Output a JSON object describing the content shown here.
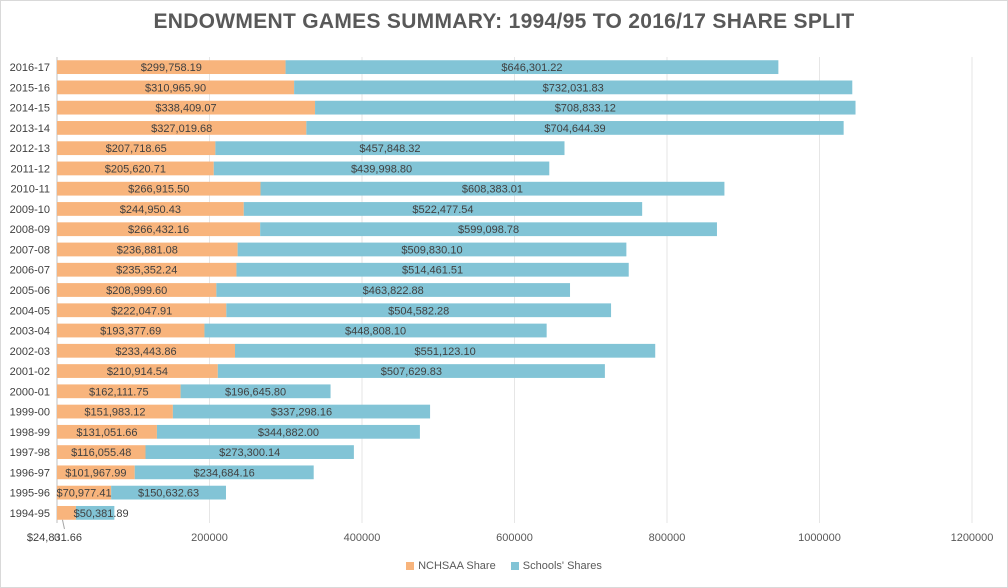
{
  "chart_data": {
    "type": "bar",
    "orientation": "horizontal",
    "stacked": true,
    "title": "ENDOWMENT GAMES SUMMARY: 1994/95 TO 2016/17 SHARE SPLIT",
    "xlabel": "",
    "ylabel": "",
    "xlim": [
      0,
      1200000
    ],
    "x_ticks": [
      0,
      200000,
      400000,
      600000,
      800000,
      1000000,
      1200000
    ],
    "x_tick_labels": [
      "0",
      "200000",
      "400000",
      "600000",
      "800000",
      "1000000",
      "1200000"
    ],
    "grid": true,
    "legend_position": "bottom",
    "categories": [
      "2016-17",
      "2015-16",
      "2014-15",
      "2013-14",
      "2012-13",
      "2011-12",
      "2010-11",
      "2009-10",
      "2008-09",
      "2007-08",
      "2006-07",
      "2005-06",
      "2004-05",
      "2003-04",
      "2002-03",
      "2001-02",
      "2000-01",
      "1999-00",
      "1998-99",
      "1997-98",
      "1996-97",
      "1995-96",
      "1994-95"
    ],
    "series": [
      {
        "name": "NCHSAA Share",
        "color": "#F8B47C",
        "values": [
          299758.19,
          310965.9,
          338409.07,
          327019.68,
          207718.65,
          205620.71,
          266915.5,
          244950.43,
          266432.16,
          236881.08,
          235352.24,
          208999.6,
          222047.91,
          193377.69,
          233443.86,
          210914.54,
          162111.75,
          151983.12,
          131051.66,
          116055.48,
          101967.99,
          70977.41,
          24831.66
        ],
        "labels": [
          "$299,758.19",
          "$310,965.90",
          "$338,409.07",
          "$327,019.68",
          "$207,718.65",
          "$205,620.71",
          "$266,915.50",
          "$244,950.43",
          "$266,432.16",
          "$236,881.08",
          "$235,352.24",
          "$208,999.60",
          "$222,047.91",
          "$193,377.69",
          "$233,443.86",
          "$210,914.54",
          "$162,111.75",
          "$151,983.12",
          "$131,051.66",
          "$116,055.48",
          "$101,967.99",
          "$70,977.41",
          "$24,831.66"
        ]
      },
      {
        "name": "Schools' Shares",
        "color": "#82C4D6",
        "values": [
          646301.22,
          732031.83,
          708833.12,
          704644.39,
          457848.32,
          439998.8,
          608383.01,
          522477.54,
          599098.78,
          509830.1,
          514461.51,
          463822.88,
          504582.28,
          448808.1,
          551123.1,
          507629.83,
          196645.8,
          337298.16,
          344882.0,
          273300.14,
          234684.16,
          150632.63,
          50381.89
        ],
        "labels": [
          "$646,301.22",
          "$732,031.83",
          "$708,833.12",
          "$704,644.39",
          "$457,848.32",
          "$439,998.80",
          "$608,383.01",
          "$522,477.54",
          "$599,098.78",
          "$509,830.10",
          "$514,461.51",
          "$463,822.88",
          "$504,582.28",
          "$448,808.10",
          "$551,123.10",
          "$507,629.83",
          "$196,645.80",
          "$337,298.16",
          "$344,882.00",
          "$273,300.14",
          "$234,684.16",
          "$150,632.63",
          "$50,381.89"
        ]
      }
    ]
  },
  "legend": {
    "items": [
      {
        "label": "NCHSAA Share",
        "color": "#F8B47C"
      },
      {
        "label": "Schools' Shares",
        "color": "#82C4D6"
      }
    ]
  }
}
